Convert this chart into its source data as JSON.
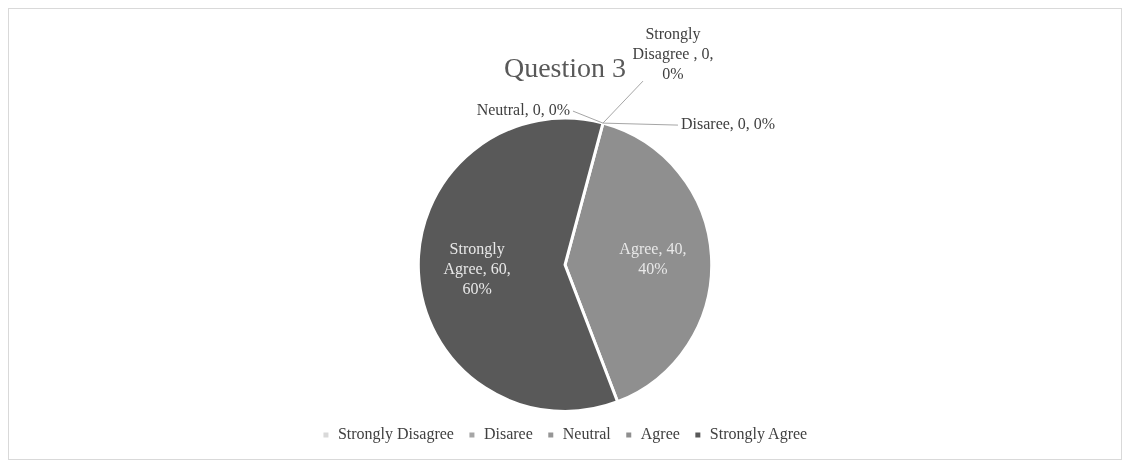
{
  "chart_data": {
    "type": "pie",
    "title": "Question 3",
    "categories": [
      "Strongly Disagree",
      "Disaree",
      "Neutral",
      "Agree",
      "Strongly Agree"
    ],
    "values": [
      0,
      0,
      0,
      40,
      60
    ],
    "colors": [
      "#d9d9d9",
      "#a6a6a6",
      "#969696",
      "#8f8f8f",
      "#595959"
    ],
    "value_labels": [
      "Strongly Disagree , 0, 0%",
      "Disaree, 0, 0%",
      "Neutral, 0, 0%",
      "Agree, 40, 40%",
      "Strongly Agree, 60, 60%"
    ],
    "legend": "bottom"
  }
}
